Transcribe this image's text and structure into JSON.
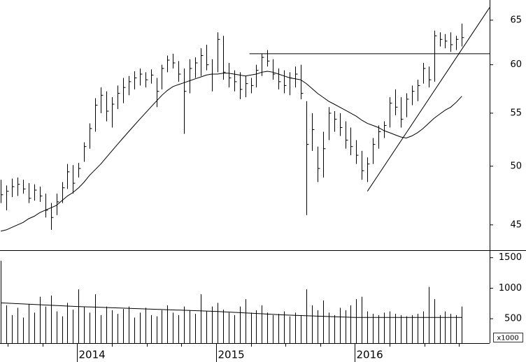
{
  "chart_data": {
    "type": "ohlc",
    "x": [
      2013.45,
      2013.49,
      2013.53,
      2013.57,
      2013.61,
      2013.65,
      2013.69,
      2013.73,
      2013.77,
      2013.81,
      2013.85,
      2013.89,
      2013.93,
      2013.97,
      2014.01,
      2014.05,
      2014.09,
      2014.13,
      2014.17,
      2014.21,
      2014.25,
      2014.29,
      2014.33,
      2014.37,
      2014.41,
      2014.45,
      2014.49,
      2014.53,
      2014.57,
      2014.61,
      2014.65,
      2014.69,
      2014.73,
      2014.77,
      2014.81,
      2014.85,
      2014.89,
      2014.93,
      2014.97,
      2015.01,
      2015.05,
      2015.09,
      2015.13,
      2015.17,
      2015.21,
      2015.25,
      2015.29,
      2015.33,
      2015.37,
      2015.41,
      2015.45,
      2015.49,
      2015.53,
      2015.57,
      2015.61,
      2015.65,
      2015.69,
      2015.73,
      2015.77,
      2015.81,
      2015.85,
      2015.89,
      2015.93,
      2015.97,
      2016.01,
      2016.05,
      2016.09,
      2016.13,
      2016.17,
      2016.21,
      2016.25,
      2016.29,
      2016.33,
      2016.37,
      2016.41,
      2016.45,
      2016.49,
      2016.53,
      2016.57,
      2016.61,
      2016.65,
      2016.69,
      2016.73,
      2016.77
    ],
    "high": [
      48.8,
      48.3,
      48.9,
      49.0,
      48.8,
      48.5,
      48.4,
      48.2,
      47.6,
      46.8,
      47.6,
      48.6,
      50.2,
      50.1,
      50.3,
      52.2,
      54.0,
      56.5,
      57.6,
      57.2,
      56.6,
      57.8,
      58.6,
      58.8,
      59.3,
      59.6,
      59.2,
      59.5,
      58.6,
      60.0,
      61.0,
      61.2,
      60.4,
      59.6,
      60.6,
      60.8,
      61.8,
      62.2,
      60.6,
      63.6,
      63.2,
      60.2,
      59.4,
      59.2,
      58.8,
      58.6,
      60.0,
      61.2,
      61.6,
      60.6,
      59.6,
      59.4,
      59.2,
      59.8,
      60.0,
      56.2,
      55.0,
      51.8,
      53.2,
      55.6,
      55.2,
      55.0,
      54.2,
      53.6,
      52.4,
      51.4,
      50.8,
      52.6,
      53.8,
      54.2,
      56.6,
      57.4,
      56.6,
      57.0,
      57.8,
      58.4,
      60.2,
      59.8,
      63.8,
      63.6,
      63.4,
      63.6,
      63.2,
      64.6
    ],
    "low": [
      46.8,
      46.2,
      47.3,
      47.4,
      47.6,
      46.8,
      47.0,
      46.9,
      45.6,
      44.6,
      45.8,
      46.8,
      48.0,
      47.6,
      49.0,
      50.4,
      51.6,
      53.2,
      55.0,
      54.2,
      53.6,
      55.4,
      56.0,
      56.8,
      57.4,
      57.8,
      57.6,
      58.0,
      55.6,
      57.4,
      59.2,
      59.6,
      58.2,
      53.0,
      57.0,
      58.6,
      58.8,
      59.4,
      57.2,
      59.2,
      58.4,
      57.6,
      57.2,
      56.4,
      56.6,
      57.0,
      57.6,
      58.8,
      59.8,
      58.4,
      57.4,
      57.0,
      56.8,
      57.6,
      56.4,
      45.8,
      51.4,
      48.6,
      49.0,
      52.4,
      53.2,
      52.8,
      51.6,
      51.0,
      50.2,
      48.8,
      48.6,
      50.2,
      51.6,
      52.6,
      53.6,
      54.8,
      53.6,
      54.6,
      55.8,
      56.2,
      58.0,
      57.6,
      58.2,
      62.0,
      61.8,
      61.4,
      61.6,
      62.0
    ],
    "close": [
      47.5,
      47.8,
      48.2,
      48.4,
      48.0,
      47.2,
      47.9,
      47.4,
      46.2,
      45.6,
      46.9,
      48.1,
      49.5,
      48.5,
      49.8,
      51.8,
      53.5,
      55.8,
      56.8,
      55.2,
      55.9,
      57.0,
      57.6,
      58.2,
      58.6,
      59.0,
      58.4,
      58.9,
      57.2,
      59.6,
      60.5,
      60.2,
      59.0,
      57.2,
      59.6,
      60.2,
      61.0,
      60.0,
      59.0,
      62.8,
      59.2,
      58.6,
      58.2,
      57.4,
      58.0,
      57.8,
      59.4,
      60.8,
      60.4,
      59.0,
      58.2,
      57.8,
      58.6,
      59.0,
      57.0,
      52.0,
      53.4,
      49.8,
      51.6,
      55.0,
      54.4,
      53.6,
      52.4,
      51.8,
      51.0,
      49.6,
      50.2,
      52.0,
      53.2,
      53.8,
      56.0,
      55.6,
      54.4,
      56.4,
      57.2,
      57.8,
      59.6,
      58.4,
      63.2,
      62.8,
      62.6,
      62.2,
      62.8,
      63.0
    ],
    "moving_average": [
      44.5,
      44.6,
      44.8,
      45.0,
      45.2,
      45.5,
      45.7,
      46.0,
      46.2,
      46.4,
      46.6,
      47.0,
      47.4,
      47.7,
      48.1,
      48.6,
      49.2,
      49.7,
      50.2,
      50.8,
      51.4,
      52.0,
      52.6,
      53.2,
      53.8,
      54.4,
      55.0,
      55.6,
      56.2,
      56.8,
      57.3,
      57.7,
      57.9,
      58.1,
      58.3,
      58.5,
      58.7,
      58.9,
      59.0,
      59.0,
      59.1,
      59.1,
      59.0,
      58.9,
      58.8,
      58.9,
      59.0,
      59.2,
      59.3,
      59.2,
      59.0,
      58.8,
      58.6,
      58.5,
      58.4,
      58.0,
      57.5,
      57.0,
      56.6,
      56.2,
      55.9,
      55.6,
      55.3,
      55.0,
      54.7,
      54.3,
      54.0,
      53.8,
      53.6,
      53.3,
      53.1,
      52.9,
      52.7,
      52.6,
      52.8,
      53.1,
      53.5,
      54.0,
      54.5,
      54.9,
      55.3,
      55.6,
      56.1,
      56.7
    ],
    "volume": [
      1450,
      720,
      560,
      680,
      520,
      740,
      600,
      860,
      700,
      880,
      620,
      540,
      760,
      650,
      980,
      700,
      600,
      900,
      560,
      700,
      640,
      580,
      660,
      700,
      520,
      600,
      680,
      560,
      540,
      640,
      720,
      600,
      560,
      700,
      640,
      580,
      900,
      620,
      700,
      760,
      650,
      600,
      560,
      700,
      820,
      600,
      640,
      720,
      600,
      560,
      580,
      620,
      540,
      600,
      560,
      980,
      720,
      640,
      800,
      600,
      560,
      680,
      640,
      720,
      820,
      860,
      620,
      580,
      560,
      600,
      620,
      580,
      560,
      540,
      560,
      580,
      620,
      1020,
      820,
      560,
      620,
      580,
      560,
      700
    ],
    "volume_ma": {
      "x": [
        2013.45,
        2014.0,
        2014.5,
        2015.0,
        2015.5,
        2016.0,
        2016.77
      ],
      "values": [
        760,
        700,
        660,
        620,
        560,
        520,
        520
      ]
    },
    "trend_lines": [
      {
        "x": [
          2015.24,
          2016.97
        ],
        "values": [
          61.2,
          61.2
        ]
      },
      {
        "x": [
          2016.09,
          2016.97
        ],
        "values": [
          47.8,
          66.5
        ]
      }
    ],
    "xlim": [
      2013.444,
      2016.97
    ],
    "xticks": [
      2014,
      2015,
      2016
    ],
    "xminorticks": [
      2013.5,
      2013.75,
      2014.25,
      2014.5,
      2014.75,
      2015.25,
      2015.5,
      2015.75,
      2016.25,
      2016.5,
      2016.75
    ],
    "ylim": [
      43,
      67.4
    ],
    "yticks": [
      45,
      50,
      55,
      60,
      65
    ],
    "log_y": true,
    "volume_ylim": [
      100,
      1600
    ],
    "volume_yticks": [
      500,
      1000,
      1500
    ],
    "volume_unit": "x1000"
  }
}
